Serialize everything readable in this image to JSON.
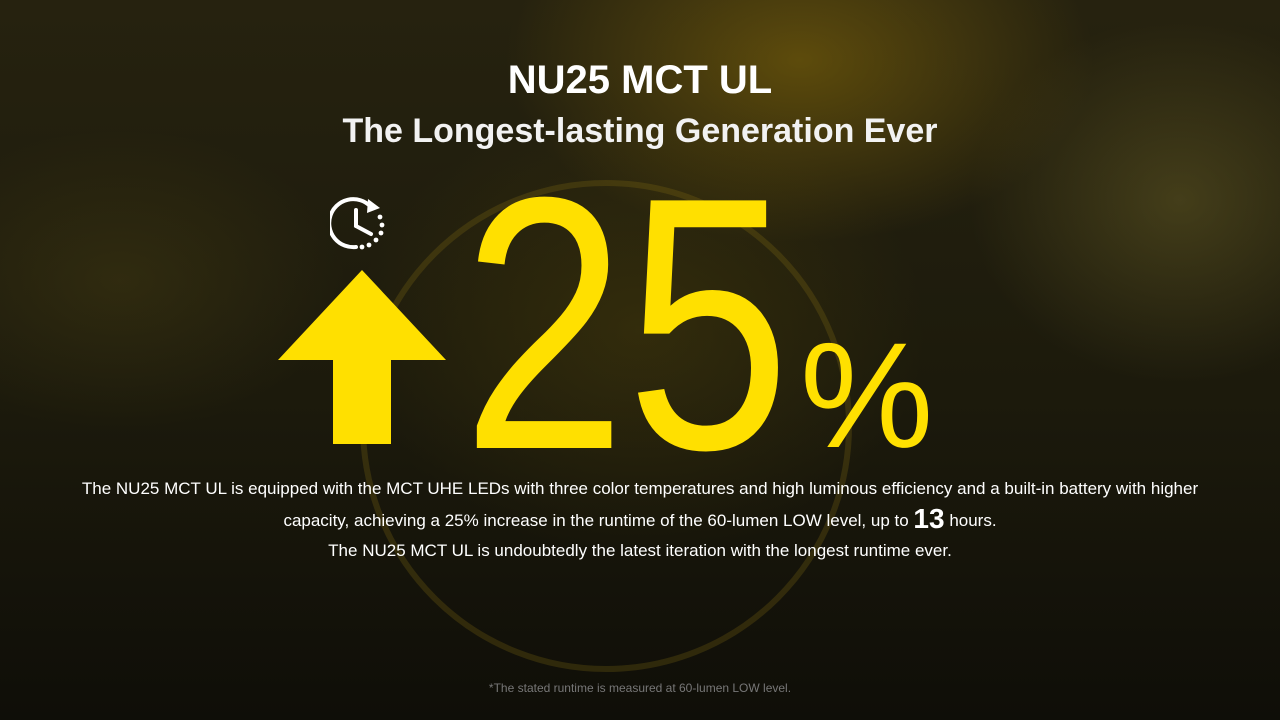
{
  "header": {
    "title": "NU25 MCT UL",
    "subtitle": "The Longest-lasting Generation Ever"
  },
  "hero": {
    "value": "25",
    "unit": "%",
    "icons": [
      "clock-refresh-icon",
      "arrow-up-icon"
    ],
    "accent_color": "#ffe000"
  },
  "description": {
    "line1": "The NU25 MCT UL is equipped with the MCT UHE LEDs with three color temperatures and high luminous efficiency and a built-in battery with higher",
    "line2_pre": "capacity, achieving a 25% increase in the runtime of the 60-lumen LOW level, up to",
    "line2_num": "13",
    "line2_post": "hours.",
    "line3": "The NU25 MCT UL is undoubtedly the latest iteration with the longest runtime ever."
  },
  "footnote": "*The stated runtime is measured at 60-lumen LOW level."
}
